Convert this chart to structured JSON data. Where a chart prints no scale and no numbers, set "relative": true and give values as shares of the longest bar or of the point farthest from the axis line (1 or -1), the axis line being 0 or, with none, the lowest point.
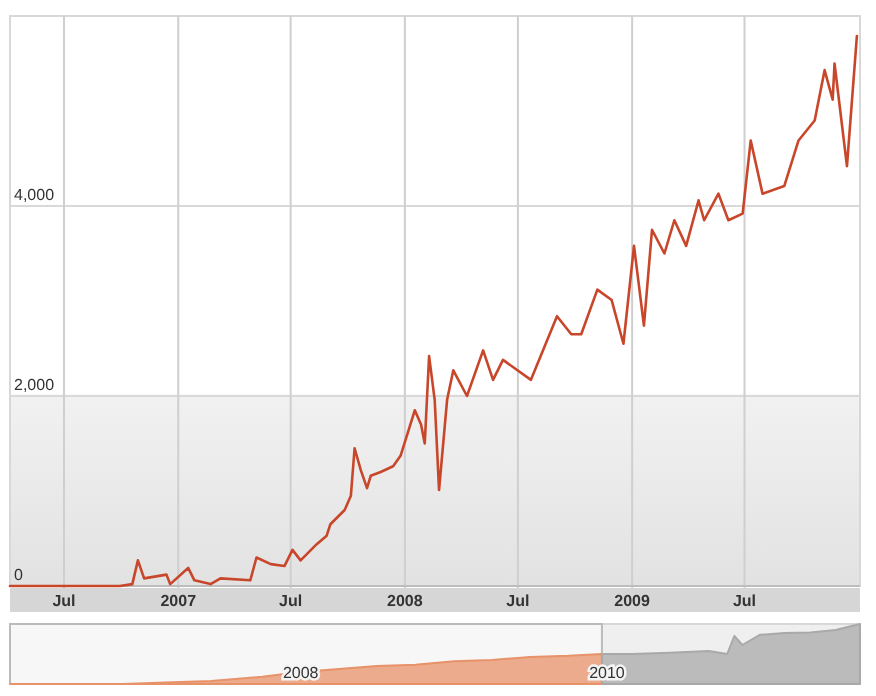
{
  "chart_data": [
    {
      "type": "line",
      "x": [
        "2006-04-05",
        "2006-06-01",
        "2006-08-01",
        "2006-09-29",
        "2006-10-19",
        "2006-10-28",
        "2006-11-07",
        "2006-12-13",
        "2006-12-19",
        "2007-01-17",
        "2007-01-27",
        "2007-02-22",
        "2007-03-10",
        "2007-04-27",
        "2007-05-07",
        "2007-05-30",
        "2007-06-21",
        "2007-07-04",
        "2007-07-17",
        "2007-08-12",
        "2007-08-28",
        "2007-09-03",
        "2007-09-26",
        "2007-10-06",
        "2007-10-12",
        "2007-10-22",
        "2007-11-01",
        "2007-11-07",
        "2007-11-23",
        "2007-12-13",
        "2007-12-25",
        "2008-01-07",
        "2008-01-17",
        "2008-01-27",
        "2008-02-02",
        "2008-02-09",
        "2008-02-18",
        "2008-02-25",
        "2008-03-09",
        "2008-03-19",
        "2008-04-10",
        "2008-05-06",
        "2008-05-22",
        "2008-06-07",
        "2008-07-22",
        "2008-09-02",
        "2008-09-25",
        "2008-10-11",
        "2008-11-06",
        "2008-11-29",
        "2008-12-18",
        "2009-01-04",
        "2009-01-20",
        "2009-02-02",
        "2009-02-22",
        "2009-03-10",
        "2009-03-29",
        "2009-04-18",
        "2009-04-27",
        "2009-05-20",
        "2009-06-05",
        "2009-06-28",
        "2009-07-11",
        "2009-07-30",
        "2009-09-03",
        "2009-09-26",
        "2009-10-22",
        "2009-11-07",
        "2009-11-20",
        "2009-11-23",
        "2009-12-13",
        "2009-12-29"
      ],
      "series": [
        {
          "color": "#c8462a",
          "values": [
            0,
            0,
            0,
            0,
            20,
            270,
            80,
            120,
            20,
            190,
            60,
            20,
            80,
            60,
            300,
            230,
            210,
            380,
            270,
            440,
            530,
            650,
            800,
            950,
            1450,
            1220,
            1030,
            1160,
            1200,
            1260,
            1370,
            1640,
            1850,
            1700,
            1500,
            2420,
            1960,
            1010,
            1960,
            2270,
            2000,
            2480,
            2170,
            2380,
            2170,
            2840,
            2650,
            2650,
            3120,
            3010,
            2550,
            3580,
            2740,
            3750,
            3500,
            3850,
            3580,
            4060,
            3850,
            4130,
            3850,
            3920,
            4690,
            4130,
            4210,
            4690,
            4900,
            5430,
            5120,
            5500,
            4420,
            5790
          ]
        }
      ],
      "xlim": [
        "2006-04-05",
        "2010-01-03"
      ],
      "ylim": [
        0,
        6000
      ],
      "xticks": [
        {
          "value": "2006-07-01",
          "label": "Jul"
        },
        {
          "value": "2007-01-01",
          "label": "2007"
        },
        {
          "value": "2007-07-01",
          "label": "Jul"
        },
        {
          "value": "2008-01-01",
          "label": "2008"
        },
        {
          "value": "2008-07-01",
          "label": "Jul"
        },
        {
          "value": "2009-01-01",
          "label": "2009"
        },
        {
          "value": "2009-07-01",
          "label": "Jul"
        }
      ],
      "yticks": [
        {
          "value": 0,
          "label": "0"
        },
        {
          "value": 2000,
          "label": "2,000"
        },
        {
          "value": 4000,
          "label": "4,000"
        }
      ],
      "grid": true
    },
    {
      "type": "area",
      "relative": true,
      "xlim": [
        "2006-02-06",
        "2011-08-28"
      ],
      "bands": [
        {
          "axis": "x",
          "from": "2006-02-06",
          "to": "2009-12-20",
          "color": "#f7f7f7"
        }
      ],
      "xticks": [
        {
          "value": "2008-01-01",
          "label": "2008"
        },
        {
          "value": "2010-01-01",
          "label": "2010"
        }
      ],
      "series": [
        {
          "color": "#e8926a",
          "x": [
            "2006-02-06",
            "2006-11-01",
            "2007-03-01",
            "2007-06-01",
            "2007-10-01",
            "2008-01-01",
            "2008-04-01",
            "2008-07-01",
            "2008-10-01",
            "2009-01-01",
            "2009-04-01",
            "2009-07-01",
            "2009-10-01",
            "2009-12-20"
          ],
          "values": [
            0,
            0,
            0.03,
            0.05,
            0.12,
            0.2,
            0.25,
            0.3,
            0.32,
            0.38,
            0.4,
            0.45,
            0.47,
            0.5
          ]
        },
        {
          "color": "#a9a9a9",
          "x": [
            "2009-12-20",
            "2010-03-01",
            "2010-06-01",
            "2010-09-01",
            "2010-10-15",
            "2010-11-01",
            "2010-11-20",
            "2011-01-01",
            "2011-03-01",
            "2011-05-01",
            "2011-07-01",
            "2011-08-28"
          ],
          "values": [
            0.5,
            0.5,
            0.52,
            0.55,
            0.5,
            0.8,
            0.65,
            0.82,
            0.85,
            0.86,
            0.9,
            1
          ]
        }
      ]
    }
  ]
}
